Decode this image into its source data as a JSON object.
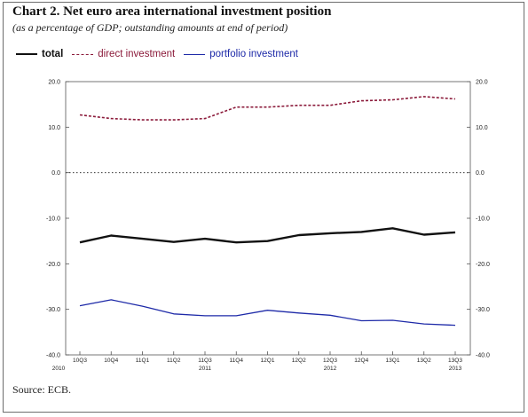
{
  "figure": {
    "title": "Chart 2. Net euro area international investment position",
    "subtitle": "(as a percentage of GDP; outstanding amounts at end of period)",
    "source": "Source: ECB."
  },
  "colors": {
    "total": "#111111",
    "direct": "#8b1a3a",
    "portfolio": "#1e2aa8",
    "axis": "#555555"
  },
  "chart_data": {
    "type": "line",
    "title": "Chart 2. Net euro area international investment position",
    "subtitle": "(as a percentage of GDP; outstanding amounts at end of period)",
    "categories": [
      "10Q3",
      "10Q4",
      "11Q1",
      "11Q2",
      "11Q3",
      "11Q4",
      "12Q1",
      "12Q2",
      "12Q3",
      "12Q4",
      "13Q1",
      "13Q2",
      "13Q3"
    ],
    "year_labels": [
      {
        "label": "2010",
        "at": 0
      },
      {
        "label": "2011",
        "at": 4
      },
      {
        "label": "2012",
        "at": 8
      },
      {
        "label": "2013",
        "at": 12
      }
    ],
    "series": [
      {
        "name": "total",
        "style": "solid-thick",
        "values": [
          -15.3,
          -13.8,
          -14.5,
          -15.2,
          -14.5,
          -15.3,
          -15.0,
          -13.7,
          -13.3,
          -13.0,
          -12.2,
          -13.6,
          -13.1
        ]
      },
      {
        "name": "direct investment",
        "style": "dashed",
        "values": [
          12.7,
          11.9,
          11.6,
          11.6,
          11.9,
          14.4,
          14.4,
          14.8,
          14.8,
          15.8,
          16.0,
          16.7,
          16.2
        ]
      },
      {
        "name": "portfolio investment",
        "style": "solid",
        "values": [
          -29.2,
          -27.9,
          -29.3,
          -31.0,
          -31.4,
          -31.4,
          -30.2,
          -30.8,
          -31.3,
          -32.5,
          -32.4,
          -33.2,
          -33.5
        ]
      }
    ],
    "zero_line": "dotted",
    "ylim": [
      -40,
      20
    ],
    "yticks": [
      20,
      10,
      0,
      -10,
      -20,
      -30,
      -40
    ],
    "ytick_labels": [
      "20.0",
      "10.0",
      "0.0",
      "-10.0",
      "-20.0",
      "-30.0",
      "-40.0"
    ],
    "xlabel": "",
    "ylabel": "",
    "grid": false,
    "legend_position": "top-left"
  }
}
